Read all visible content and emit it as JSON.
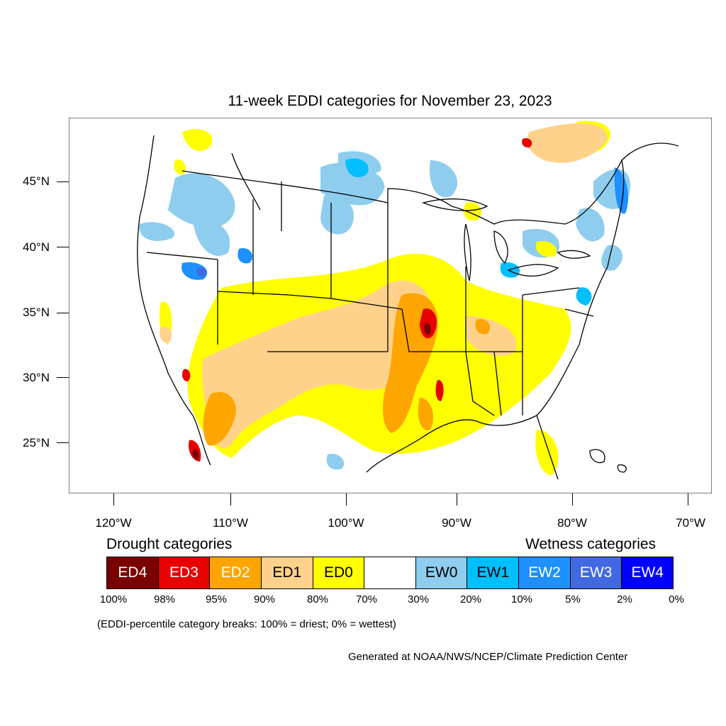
{
  "title": "11-week EDDI categories for November 23, 2023",
  "lat_labels": [
    "45°N",
    "40°N",
    "35°N",
    "30°N",
    "25°N"
  ],
  "lon_labels": [
    "120°W",
    "110°W",
    "100°W",
    "90°W",
    "80°W",
    "70°W"
  ],
  "legend": {
    "drought_heading": "Drought categories",
    "wetness_heading": "Wetness categories",
    "categories": [
      {
        "label": "ED4",
        "color": "#7a0000",
        "text_color": "#ffffff"
      },
      {
        "label": "ED3",
        "color": "#e60000",
        "text_color": "#ffffff"
      },
      {
        "label": "ED2",
        "color": "#ffa500",
        "text_color": "#ffffff"
      },
      {
        "label": "ED1",
        "color": "#ffd28c",
        "text_color": "#000000"
      },
      {
        "label": "ED0",
        "color": "#ffff00",
        "text_color": "#000000"
      },
      {
        "label": "",
        "color": "#ffffff",
        "text_color": "#000000"
      },
      {
        "label": "EW0",
        "color": "#8ecdee",
        "text_color": "#000000"
      },
      {
        "label": "EW1",
        "color": "#00bfff",
        "text_color": "#000000"
      },
      {
        "label": "EW2",
        "color": "#1e90ff",
        "text_color": "#ffffff"
      },
      {
        "label": "EW3",
        "color": "#4169e1",
        "text_color": "#ffffff"
      },
      {
        "label": "EW4",
        "color": "#0000ff",
        "text_color": "#ffffff"
      }
    ],
    "breaks": [
      "100%",
      "98%",
      "95%",
      "90%",
      "80%",
      "70%",
      "30%",
      "20%",
      "10%",
      "5%",
      "2%",
      "0%"
    ]
  },
  "note": "(EDDI-percentile category breaks: 100% = driest; 0% = wettest)",
  "credit": "Generated at NOAA/NWS/NCEP/Climate Prediction Center"
}
